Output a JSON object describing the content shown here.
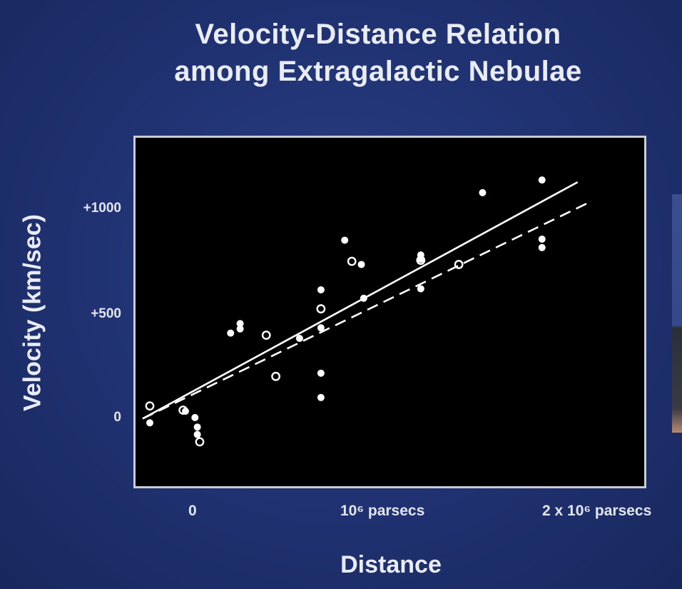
{
  "chart_data": {
    "type": "scatter",
    "title_lines": [
      "Velocity-Distance Relation",
      "among Extragalactic Nebulae"
    ],
    "xlabel": "Distance",
    "ylabel": "Velocity (km/sec)",
    "x_ticks": [
      {
        "value": 0,
        "label": "0"
      },
      {
        "value": 1,
        "label": "10⁶ parsecs"
      },
      {
        "value": 2,
        "label": "2 x 10⁶ parsecs"
      }
    ],
    "y_ticks": [
      {
        "value": 0,
        "label": "0"
      },
      {
        "value": 500,
        "label": "+500"
      },
      {
        "value": 1000,
        "label": "+1000"
      }
    ],
    "xlim": [
      -0.03,
      2.11
    ],
    "ylim": [
      -330,
      1320
    ],
    "grid": false,
    "series": [
      {
        "marker": "filled",
        "points": [
          [
            0.03,
            -30
          ],
          [
            0.18,
            25
          ],
          [
            0.22,
            -5
          ],
          [
            0.23,
            -50
          ],
          [
            0.23,
            -85
          ],
          [
            0.37,
            395
          ],
          [
            0.41,
            415
          ],
          [
            0.41,
            440
          ],
          [
            0.66,
            370
          ],
          [
            0.75,
            600
          ],
          [
            0.75,
            420
          ],
          [
            0.75,
            205
          ],
          [
            0.75,
            90
          ],
          [
            0.85,
            835
          ],
          [
            0.92,
            720
          ],
          [
            0.93,
            560
          ],
          [
            1.17,
            605
          ],
          [
            1.17,
            745
          ],
          [
            1.17,
            765
          ],
          [
            1.43,
            1060
          ],
          [
            1.68,
            1120
          ],
          [
            1.68,
            840
          ],
          [
            1.68,
            800
          ]
        ]
      },
      {
        "marker": "open",
        "points": [
          [
            0.03,
            50
          ],
          [
            0.17,
            30
          ],
          [
            0.24,
            -120
          ],
          [
            0.52,
            385
          ],
          [
            0.56,
            190
          ],
          [
            0.75,
            510
          ],
          [
            0.88,
            735
          ],
          [
            1.17,
            740
          ],
          [
            1.33,
            720
          ]
        ]
      }
    ],
    "lines": [
      {
        "style": "solid",
        "x": [
          0.0,
          1.83
        ],
        "y": [
          -10,
          1110
        ]
      },
      {
        "style": "dashed",
        "x": [
          0.0,
          1.88
        ],
        "y": [
          -10,
          1015
        ]
      }
    ]
  },
  "colors": {
    "background": "#1f3170",
    "plot_background": "#000000",
    "marks": "#ffffff",
    "text": "#e9ecf4"
  }
}
